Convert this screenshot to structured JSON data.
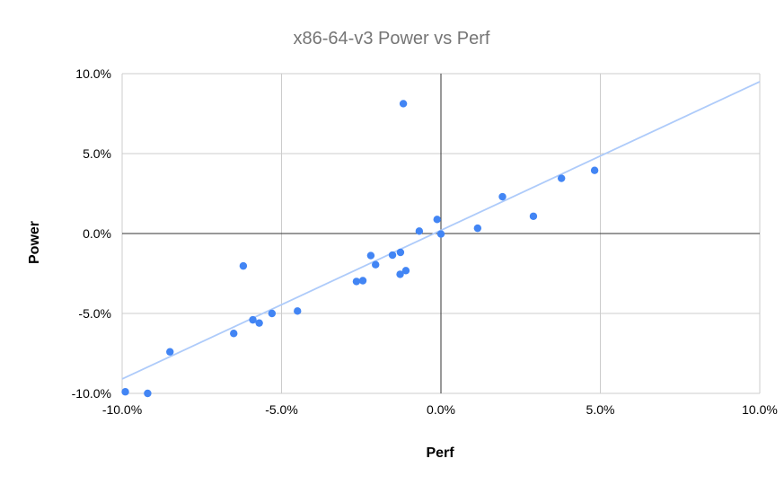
{
  "chart_data": {
    "type": "scatter",
    "title": "x86-64-v3 Power vs Perf",
    "xlabel": "Perf",
    "ylabel": "Power",
    "xlim": [
      -0.1,
      0.1
    ],
    "ylim": [
      -0.1,
      0.1
    ],
    "x_ticks": [
      {
        "value": -0.1,
        "label": "-10.0%"
      },
      {
        "value": -0.05,
        "label": "-5.0%"
      },
      {
        "value": 0.0,
        "label": "0.0%"
      },
      {
        "value": 0.05,
        "label": "5.0%"
      },
      {
        "value": 0.1,
        "label": "10.0%"
      }
    ],
    "y_ticks": [
      {
        "value": 0.1,
        "label": "10.0%"
      },
      {
        "value": 0.05,
        "label": "5.0%"
      },
      {
        "value": 0.0,
        "label": "0.0%"
      },
      {
        "value": -0.05,
        "label": "-5.0%"
      },
      {
        "value": -0.1,
        "label": "-10.0%"
      }
    ],
    "grid": true,
    "point_color": "#4285f4",
    "trendline_color": "#aecbfa",
    "trendline": {
      "x": [
        -0.1,
        0.1
      ],
      "y": [
        -0.091,
        0.095
      ]
    },
    "series": [
      {
        "points": [
          {
            "x": -0.099,
            "y": -0.099
          },
          {
            "x": -0.092,
            "y": -0.1
          },
          {
            "x": -0.085,
            "y": -0.074
          },
          {
            "x": -0.065,
            "y": -0.0625
          },
          {
            "x": -0.062,
            "y": -0.0203
          },
          {
            "x": -0.059,
            "y": -0.054
          },
          {
            "x": -0.057,
            "y": -0.056
          },
          {
            "x": -0.053,
            "y": -0.05
          },
          {
            "x": -0.045,
            "y": -0.0485
          },
          {
            "x": -0.0265,
            "y": -0.03
          },
          {
            "x": -0.0245,
            "y": -0.0295
          },
          {
            "x": -0.022,
            "y": -0.0138
          },
          {
            "x": -0.0205,
            "y": -0.0195
          },
          {
            "x": -0.0152,
            "y": -0.0135
          },
          {
            "x": -0.0128,
            "y": -0.0255
          },
          {
            "x": -0.0127,
            "y": -0.0118
          },
          {
            "x": -0.0118,
            "y": 0.0812
          },
          {
            "x": -0.011,
            "y": -0.0232
          },
          {
            "x": -0.0068,
            "y": 0.0015
          },
          {
            "x": -0.0012,
            "y": 0.0088
          },
          {
            "x": 0.0,
            "y": -0.0003
          },
          {
            "x": 0.0115,
            "y": 0.0033
          },
          {
            "x": 0.0193,
            "y": 0.023
          },
          {
            "x": 0.029,
            "y": 0.0108
          },
          {
            "x": 0.0378,
            "y": 0.0345
          },
          {
            "x": 0.0482,
            "y": 0.0395
          }
        ]
      }
    ]
  }
}
